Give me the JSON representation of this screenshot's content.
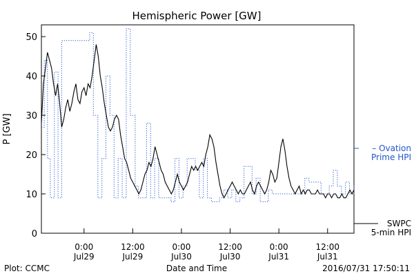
{
  "chart_data": {
    "type": "line",
    "title": "Hemispheric Power [GW]",
    "xlabel": "Date and Time",
    "ylabel": "P [GW]",
    "ylim": [
      0,
      53
    ],
    "xlim": [
      -10.5,
      66.5
    ],
    "x_unit": "hours since 2016-07-29 00:00",
    "yticks": [
      0,
      10,
      20,
      30,
      40,
      50
    ],
    "xticks": [
      {
        "x": 0,
        "top": "0:00",
        "bottom": "Jul29"
      },
      {
        "x": 12,
        "top": "12:00",
        "bottom": "Jul29"
      },
      {
        "x": 24,
        "top": "0:00",
        "bottom": "Jul30"
      },
      {
        "x": 36,
        "top": "12:00",
        "bottom": "Jul30"
      },
      {
        "x": 48,
        "top": "0:00",
        "bottom": "Jul31"
      },
      {
        "x": 60,
        "top": "12:00",
        "bottom": "Jul31"
      }
    ],
    "grid": false,
    "series": [
      {
        "name": "Ovation Prime HPI",
        "legend_lines": [
          "– Ovation",
          "Prime HPI"
        ],
        "color": "#2255cc",
        "style": "dotted",
        "points": [
          [
            -10.5,
            27
          ],
          [
            -9.8,
            44
          ],
          [
            -9.0,
            19
          ],
          [
            -8.3,
            9
          ],
          [
            -7.3,
            41
          ],
          [
            -6.4,
            9
          ],
          [
            -5.5,
            49
          ],
          [
            -1.0,
            49
          ],
          [
            0.0,
            49
          ],
          [
            1.0,
            49
          ],
          [
            1.4,
            51
          ],
          [
            2.0,
            51
          ],
          [
            2.3,
            30
          ],
          [
            3.4,
            9
          ],
          [
            4.4,
            19
          ],
          [
            5.4,
            40
          ],
          [
            6.4,
            30
          ],
          [
            7.4,
            9
          ],
          [
            8.4,
            19
          ],
          [
            9.4,
            9
          ],
          [
            10.4,
            52
          ],
          [
            11.4,
            30
          ],
          [
            12.6,
            12
          ],
          [
            13.4,
            9
          ],
          [
            14.4,
            9
          ],
          [
            15.4,
            28
          ],
          [
            16.4,
            9
          ],
          [
            17.4,
            19
          ],
          [
            18.4,
            9
          ],
          [
            19.4,
            9
          ],
          [
            20.5,
            9
          ],
          [
            21.4,
            8
          ],
          [
            22.4,
            19
          ],
          [
            23.4,
            9
          ],
          [
            24.4,
            12
          ],
          [
            25.4,
            19
          ],
          [
            26.4,
            19
          ],
          [
            27.4,
            16
          ],
          [
            28.4,
            9
          ],
          [
            29.4,
            19
          ],
          [
            30.4,
            9
          ],
          [
            31.4,
            8
          ],
          [
            32.4,
            8
          ],
          [
            33.4,
            9
          ],
          [
            34.4,
            11
          ],
          [
            35.4,
            9
          ],
          [
            36.4,
            11
          ],
          [
            37.4,
            8
          ],
          [
            38.4,
            9
          ],
          [
            39.4,
            17
          ],
          [
            41.4,
            10
          ],
          [
            42.4,
            14
          ],
          [
            43.4,
            8
          ],
          [
            44.4,
            8
          ],
          [
            45.4,
            11
          ],
          [
            46.4,
            10
          ],
          [
            47.4,
            10
          ],
          [
            48.4,
            10
          ],
          [
            49.4,
            10
          ],
          [
            50.4,
            10
          ],
          [
            51.4,
            10
          ],
          [
            52.4,
            10
          ],
          [
            53.4,
            10
          ],
          [
            54.4,
            14
          ],
          [
            55.4,
            13
          ],
          [
            56.4,
            13
          ],
          [
            57.4,
            13
          ],
          [
            58.4,
            10
          ],
          [
            59.4,
            10
          ],
          [
            60.4,
            12
          ],
          [
            61.4,
            16
          ],
          [
            62.4,
            12
          ],
          [
            63.4,
            10
          ],
          [
            64.4,
            13
          ],
          [
            65.4,
            10
          ],
          [
            66.5,
            12
          ]
        ]
      },
      {
        "name": "SWPC 5-min HPI",
        "legend_lines": [
          "SWPC",
          "5-min HPI"
        ],
        "color": "#000000",
        "style": "solid",
        "points": [
          [
            -10.5,
            28
          ],
          [
            -10.0,
            38
          ],
          [
            -9.5,
            42
          ],
          [
            -9.0,
            46
          ],
          [
            -8.5,
            44
          ],
          [
            -8.0,
            42
          ],
          [
            -7.5,
            38
          ],
          [
            -7.0,
            35
          ],
          [
            -6.5,
            38
          ],
          [
            -6.0,
            33
          ],
          [
            -5.5,
            27
          ],
          [
            -5.0,
            29
          ],
          [
            -4.5,
            32
          ],
          [
            -4.0,
            34
          ],
          [
            -3.5,
            31
          ],
          [
            -3.0,
            33
          ],
          [
            -2.5,
            36
          ],
          [
            -2.0,
            38
          ],
          [
            -1.5,
            34
          ],
          [
            -1.0,
            33
          ],
          [
            -0.5,
            36
          ],
          [
            0.0,
            37
          ],
          [
            0.5,
            35
          ],
          [
            1.0,
            38
          ],
          [
            1.5,
            37
          ],
          [
            2.0,
            40
          ],
          [
            2.5,
            44
          ],
          [
            3.0,
            48
          ],
          [
            3.5,
            45
          ],
          [
            4.0,
            40
          ],
          [
            4.5,
            37
          ],
          [
            5.0,
            33
          ],
          [
            5.5,
            30
          ],
          [
            6.0,
            27
          ],
          [
            6.5,
            26
          ],
          [
            7.0,
            27
          ],
          [
            7.5,
            29
          ],
          [
            8.0,
            30
          ],
          [
            8.5,
            29
          ],
          [
            9.0,
            25
          ],
          [
            9.5,
            22
          ],
          [
            10.0,
            19
          ],
          [
            10.5,
            18
          ],
          [
            11.0,
            16
          ],
          [
            11.5,
            14
          ],
          [
            12.0,
            13
          ],
          [
            12.5,
            12
          ],
          [
            13.0,
            11
          ],
          [
            13.5,
            10
          ],
          [
            14.0,
            11
          ],
          [
            14.5,
            13
          ],
          [
            15.0,
            15
          ],
          [
            15.5,
            16
          ],
          [
            16.0,
            18
          ],
          [
            16.5,
            17
          ],
          [
            17.0,
            19
          ],
          [
            17.5,
            22
          ],
          [
            18.0,
            20
          ],
          [
            18.5,
            18
          ],
          [
            19.0,
            16
          ],
          [
            19.5,
            15
          ],
          [
            20.0,
            13
          ],
          [
            20.5,
            12
          ],
          [
            21.0,
            11
          ],
          [
            21.5,
            10
          ],
          [
            22.0,
            11
          ],
          [
            22.5,
            13
          ],
          [
            23.0,
            15
          ],
          [
            23.5,
            13
          ],
          [
            24.0,
            12
          ],
          [
            24.5,
            11
          ],
          [
            25.0,
            12
          ],
          [
            25.5,
            13
          ],
          [
            26.0,
            15
          ],
          [
            26.5,
            17
          ],
          [
            27.0,
            16
          ],
          [
            27.5,
            17
          ],
          [
            28.0,
            16
          ],
          [
            28.5,
            17
          ],
          [
            29.0,
            18
          ],
          [
            29.5,
            17
          ],
          [
            30.0,
            20
          ],
          [
            30.5,
            22
          ],
          [
            31.0,
            25
          ],
          [
            31.5,
            24
          ],
          [
            32.0,
            22
          ],
          [
            32.5,
            18
          ],
          [
            33.0,
            15
          ],
          [
            33.5,
            12
          ],
          [
            34.0,
            10
          ],
          [
            34.5,
            9
          ],
          [
            35.0,
            10
          ],
          [
            35.5,
            11
          ],
          [
            36.0,
            12
          ],
          [
            36.5,
            13
          ],
          [
            37.0,
            12
          ],
          [
            37.5,
            11
          ],
          [
            38.0,
            10
          ],
          [
            38.5,
            11
          ],
          [
            39.0,
            10
          ],
          [
            39.5,
            10
          ],
          [
            40.0,
            11
          ],
          [
            40.5,
            12
          ],
          [
            41.0,
            13
          ],
          [
            41.5,
            11
          ],
          [
            42.0,
            10
          ],
          [
            42.5,
            12
          ],
          [
            43.0,
            13
          ],
          [
            43.5,
            12
          ],
          [
            44.0,
            11
          ],
          [
            44.5,
            10
          ],
          [
            45.0,
            11
          ],
          [
            45.5,
            13
          ],
          [
            46.0,
            16
          ],
          [
            46.5,
            15
          ],
          [
            47.0,
            13
          ],
          [
            47.5,
            14
          ],
          [
            48.0,
            18
          ],
          [
            48.5,
            22
          ],
          [
            49.0,
            24
          ],
          [
            49.5,
            21
          ],
          [
            50.0,
            17
          ],
          [
            50.5,
            14
          ],
          [
            51.0,
            12
          ],
          [
            51.5,
            11
          ],
          [
            52.0,
            10
          ],
          [
            52.5,
            11
          ],
          [
            53.0,
            12
          ],
          [
            53.5,
            10
          ],
          [
            54.0,
            11
          ],
          [
            54.5,
            10
          ],
          [
            55.0,
            11
          ],
          [
            55.5,
            11
          ],
          [
            56.0,
            10
          ],
          [
            56.5,
            10
          ],
          [
            57.0,
            10
          ],
          [
            57.5,
            11
          ],
          [
            58.0,
            10
          ],
          [
            58.5,
            10
          ],
          [
            59.0,
            10
          ],
          [
            59.5,
            9
          ],
          [
            60.0,
            10
          ],
          [
            60.5,
            10
          ],
          [
            61.0,
            9
          ],
          [
            61.5,
            10
          ],
          [
            62.0,
            10
          ],
          [
            62.5,
            9
          ],
          [
            63.0,
            9
          ],
          [
            63.5,
            10
          ],
          [
            64.0,
            9
          ],
          [
            64.5,
            9
          ],
          [
            65.0,
            10
          ],
          [
            65.5,
            11
          ],
          [
            66.0,
            10
          ],
          [
            66.5,
            11
          ]
        ]
      }
    ]
  },
  "footer": {
    "left": "Plot: CCMC",
    "right": "2016/07/31 17:50:11"
  }
}
